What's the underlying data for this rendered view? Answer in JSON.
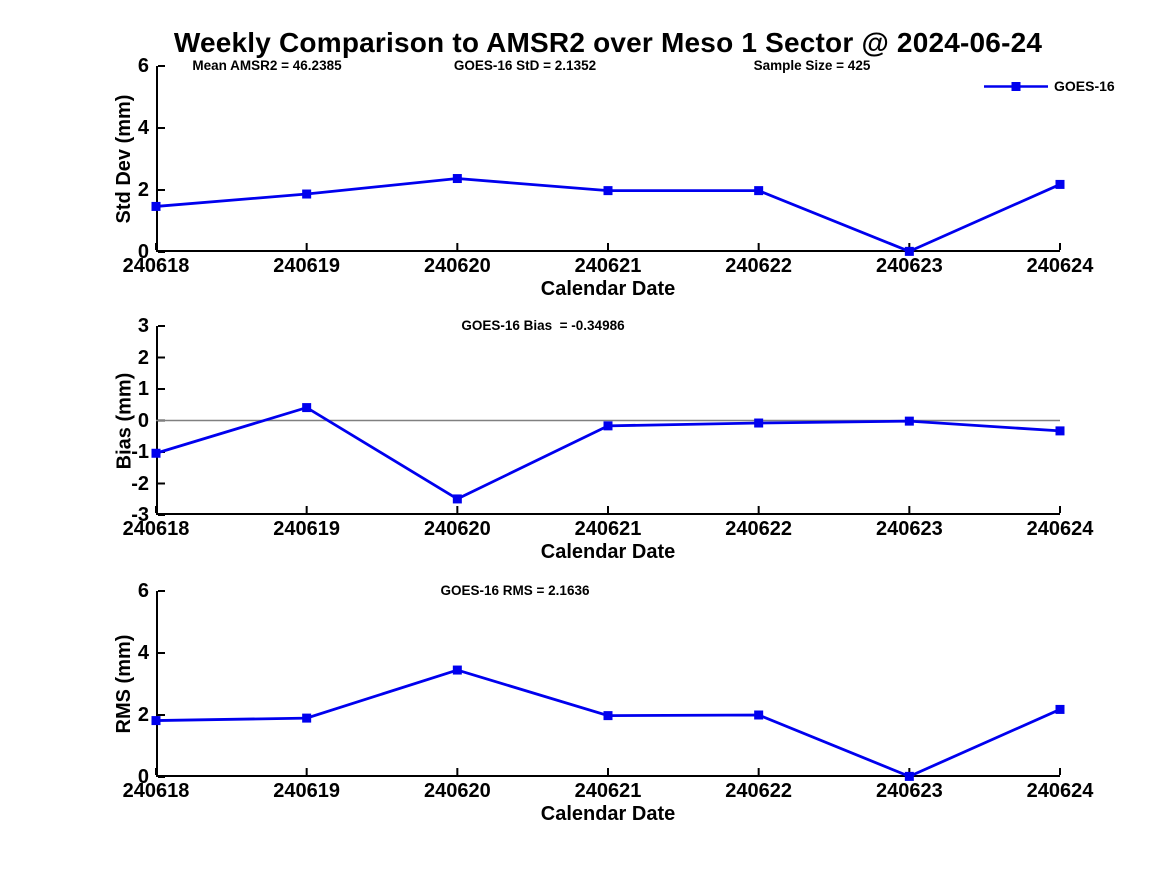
{
  "figure": {
    "title": "Weekly Comparison to AMSR2 over Meso 1 Sector @ 2024-06-24"
  },
  "legend": {
    "label": "GOES-16",
    "marker": "square",
    "color": "#0000EE"
  },
  "colors": {
    "series_line": "#0000EE",
    "zero_line": "#808080",
    "axis": "#000000",
    "text": "#000000",
    "background": "#FFFFFF"
  },
  "chart_data": [
    {
      "type": "line",
      "id": "std-dev",
      "annotations": [
        "Mean AMSR2 = 46.2385",
        "GOES-16 StD = 2.1352",
        "Sample Size = 425"
      ],
      "categories": [
        "240618",
        "240619",
        "240620",
        "240621",
        "240622",
        "240623",
        "240624"
      ],
      "series": [
        {
          "name": "GOES-16",
          "marker": "square",
          "values": [
            1.47,
            1.87,
            2.37,
            1.98,
            1.98,
            0.02,
            2.18
          ]
        }
      ],
      "xlabel": "Calendar Date",
      "ylabel": "Std Dev (mm)",
      "ylim": [
        0,
        6
      ],
      "yticks": [
        0,
        2,
        4,
        6
      ],
      "zero_line": false,
      "grid": false,
      "legend_position": "top-right"
    },
    {
      "type": "line",
      "id": "bias",
      "annotations": [
        "GOES-16 Bias  = -0.34986"
      ],
      "categories": [
        "240618",
        "240619",
        "240620",
        "240621",
        "240622",
        "240623",
        "240624"
      ],
      "series": [
        {
          "name": "GOES-16",
          "marker": "square",
          "values": [
            -1.04,
            0.41,
            -2.49,
            -0.17,
            -0.08,
            -0.02,
            -0.33
          ]
        }
      ],
      "xlabel": "Calendar Date",
      "ylabel": "Bias (mm)",
      "ylim": [
        -3,
        3
      ],
      "yticks": [
        -3,
        -2,
        -1,
        0,
        1,
        2,
        3
      ],
      "zero_line": true,
      "grid": false,
      "legend_position": "none"
    },
    {
      "type": "line",
      "id": "rms",
      "annotations": [
        "GOES-16 RMS = 2.1636"
      ],
      "categories": [
        "240618",
        "240619",
        "240620",
        "240621",
        "240622",
        "240623",
        "240624"
      ],
      "series": [
        {
          "name": "GOES-16",
          "marker": "square",
          "values": [
            1.82,
            1.9,
            3.45,
            1.98,
            2.0,
            0.02,
            2.18
          ]
        }
      ],
      "xlabel": "Calendar Date",
      "ylabel": "RMS (mm)",
      "ylim": [
        0,
        6
      ],
      "yticks": [
        0,
        2,
        4,
        6
      ],
      "zero_line": false,
      "grid": false,
      "legend_position": "none"
    }
  ]
}
